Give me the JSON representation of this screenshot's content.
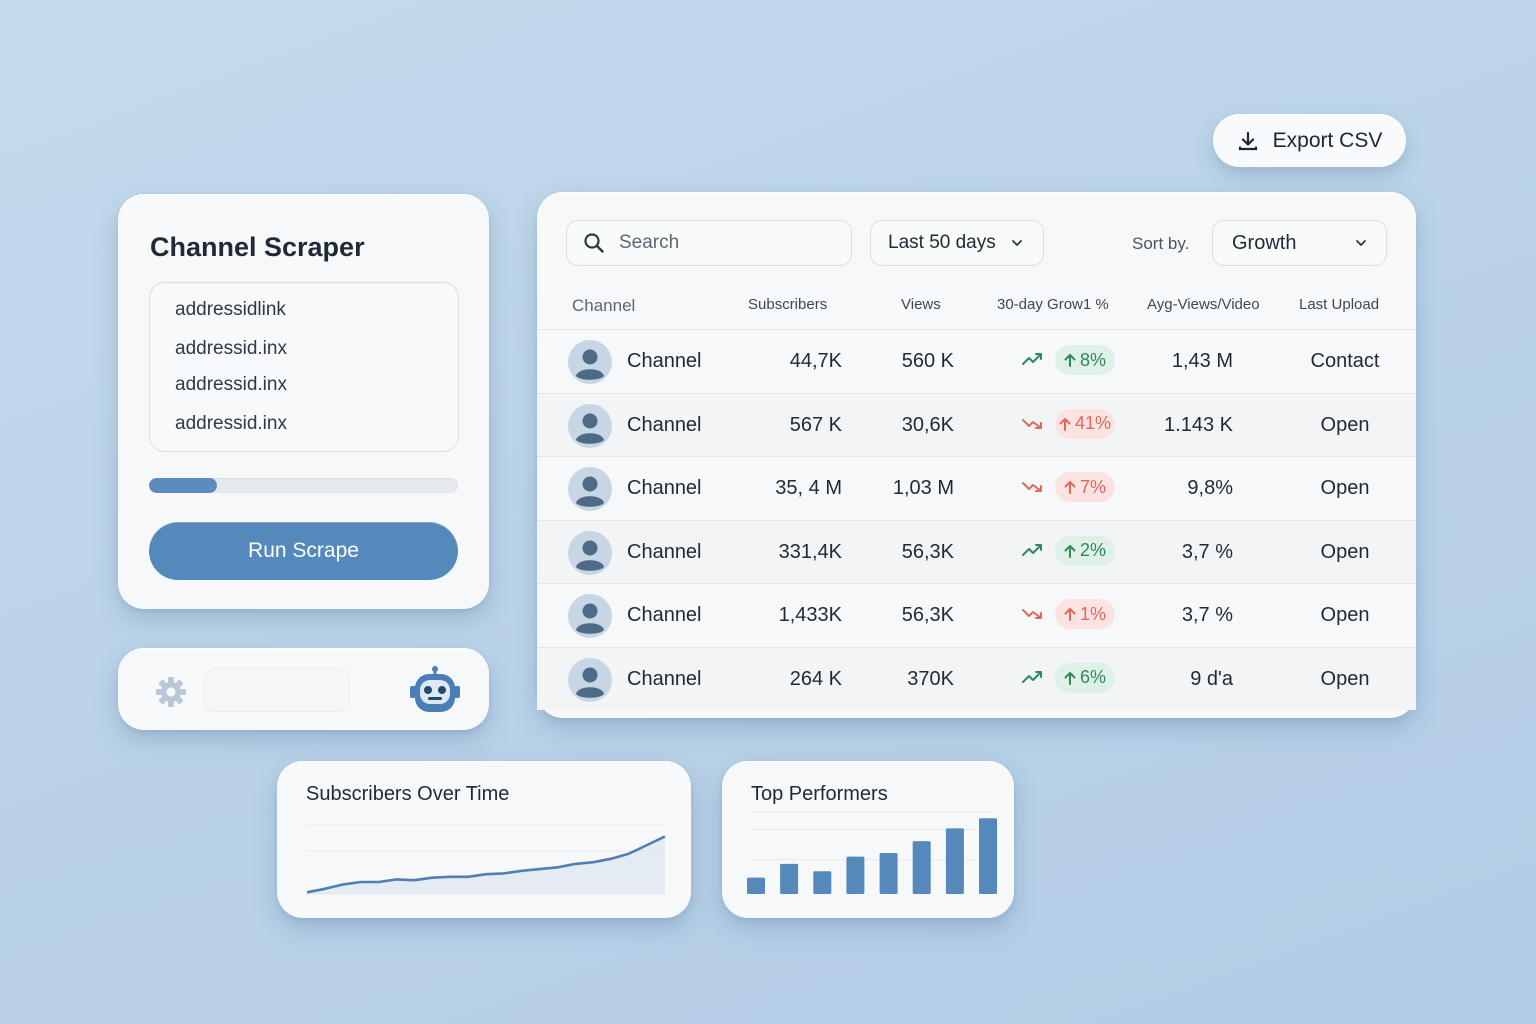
{
  "export": {
    "label": "Export CSV",
    "icon": "download-icon"
  },
  "scraper": {
    "title": "Channel Scraper",
    "urls": [
      "addressidlink",
      "addressid.inx",
      "addressid.inx",
      "addressid.inx"
    ],
    "progress": 0.22,
    "run_label": "Run Scrape"
  },
  "settings": {
    "icons": [
      "gear-icon",
      "robot-icon"
    ]
  },
  "table": {
    "search_placeholder": "Search",
    "range_label": "Last 50 days",
    "sort_label": "Sort by.",
    "sort_value": "Growth",
    "headers": {
      "channel": "Channel",
      "subscribers": "Subscribers",
      "views": "Views",
      "growth": "30-day Grow1 %",
      "avg": "Ayg-Views/Video",
      "last": "Last Upload"
    },
    "rows": [
      {
        "name": "Channel",
        "subs": "44,7K",
        "views": "560 K",
        "trend": "up",
        "growth": "8%",
        "avg": "1,43 M",
        "last": "Contact"
      },
      {
        "name": "Channel",
        "subs": "567 K",
        "views": "30,6K",
        "trend": "down",
        "growth": "41%",
        "avg": "1.143 K",
        "last": "Open"
      },
      {
        "name": "Channel",
        "subs": "35, 4 M",
        "views": "1,03 M",
        "trend": "down",
        "growth": "7%",
        "avg": "9,8%",
        "last": "Open"
      },
      {
        "name": "Channel",
        "subs": "331,4K",
        "views": "56,3K",
        "trend": "up",
        "growth": "2%",
        "avg": "3,7 %",
        "last": "Open"
      },
      {
        "name": "Channel",
        "subs": "1,433K",
        "views": "56,3K",
        "trend": "down",
        "growth": "1%",
        "avg": "3,7 %",
        "last": "Open"
      },
      {
        "name": "Channel",
        "subs": "264 K",
        "views": "370K",
        "trend": "up",
        "growth": "6%",
        "avg": "9 d'a",
        "last": "Open"
      }
    ],
    "colors": {
      "up": "#2f8a5a",
      "down": "#e2675a"
    }
  },
  "charts": {
    "subscribers_title": "Subscribers Over Time",
    "top_title": "Top Performers"
  },
  "chart_data": [
    {
      "type": "area",
      "title": "Subscribers Over Time",
      "x": [
        0,
        1,
        2,
        3,
        4,
        5,
        6,
        7,
        8,
        9,
        10,
        11,
        12,
        13,
        14,
        15,
        16,
        17,
        18,
        19,
        20
      ],
      "y": [
        2,
        6,
        11,
        14,
        14,
        17,
        16,
        19,
        20,
        20,
        23,
        24,
        27,
        29,
        31,
        35,
        37,
        41,
        47,
        57,
        67
      ],
      "ylim": [
        0,
        100
      ],
      "grid": true,
      "color": "#4f7fb3"
    },
    {
      "type": "bar",
      "title": "Top Performers",
      "categories": [
        "1",
        "2",
        "3",
        "4",
        "5",
        "6",
        "7",
        "8"
      ],
      "values": [
        18,
        33,
        25,
        41,
        45,
        58,
        72,
        83
      ],
      "ylim": [
        0,
        100
      ],
      "grid": true,
      "color": "#5589bb"
    }
  ]
}
